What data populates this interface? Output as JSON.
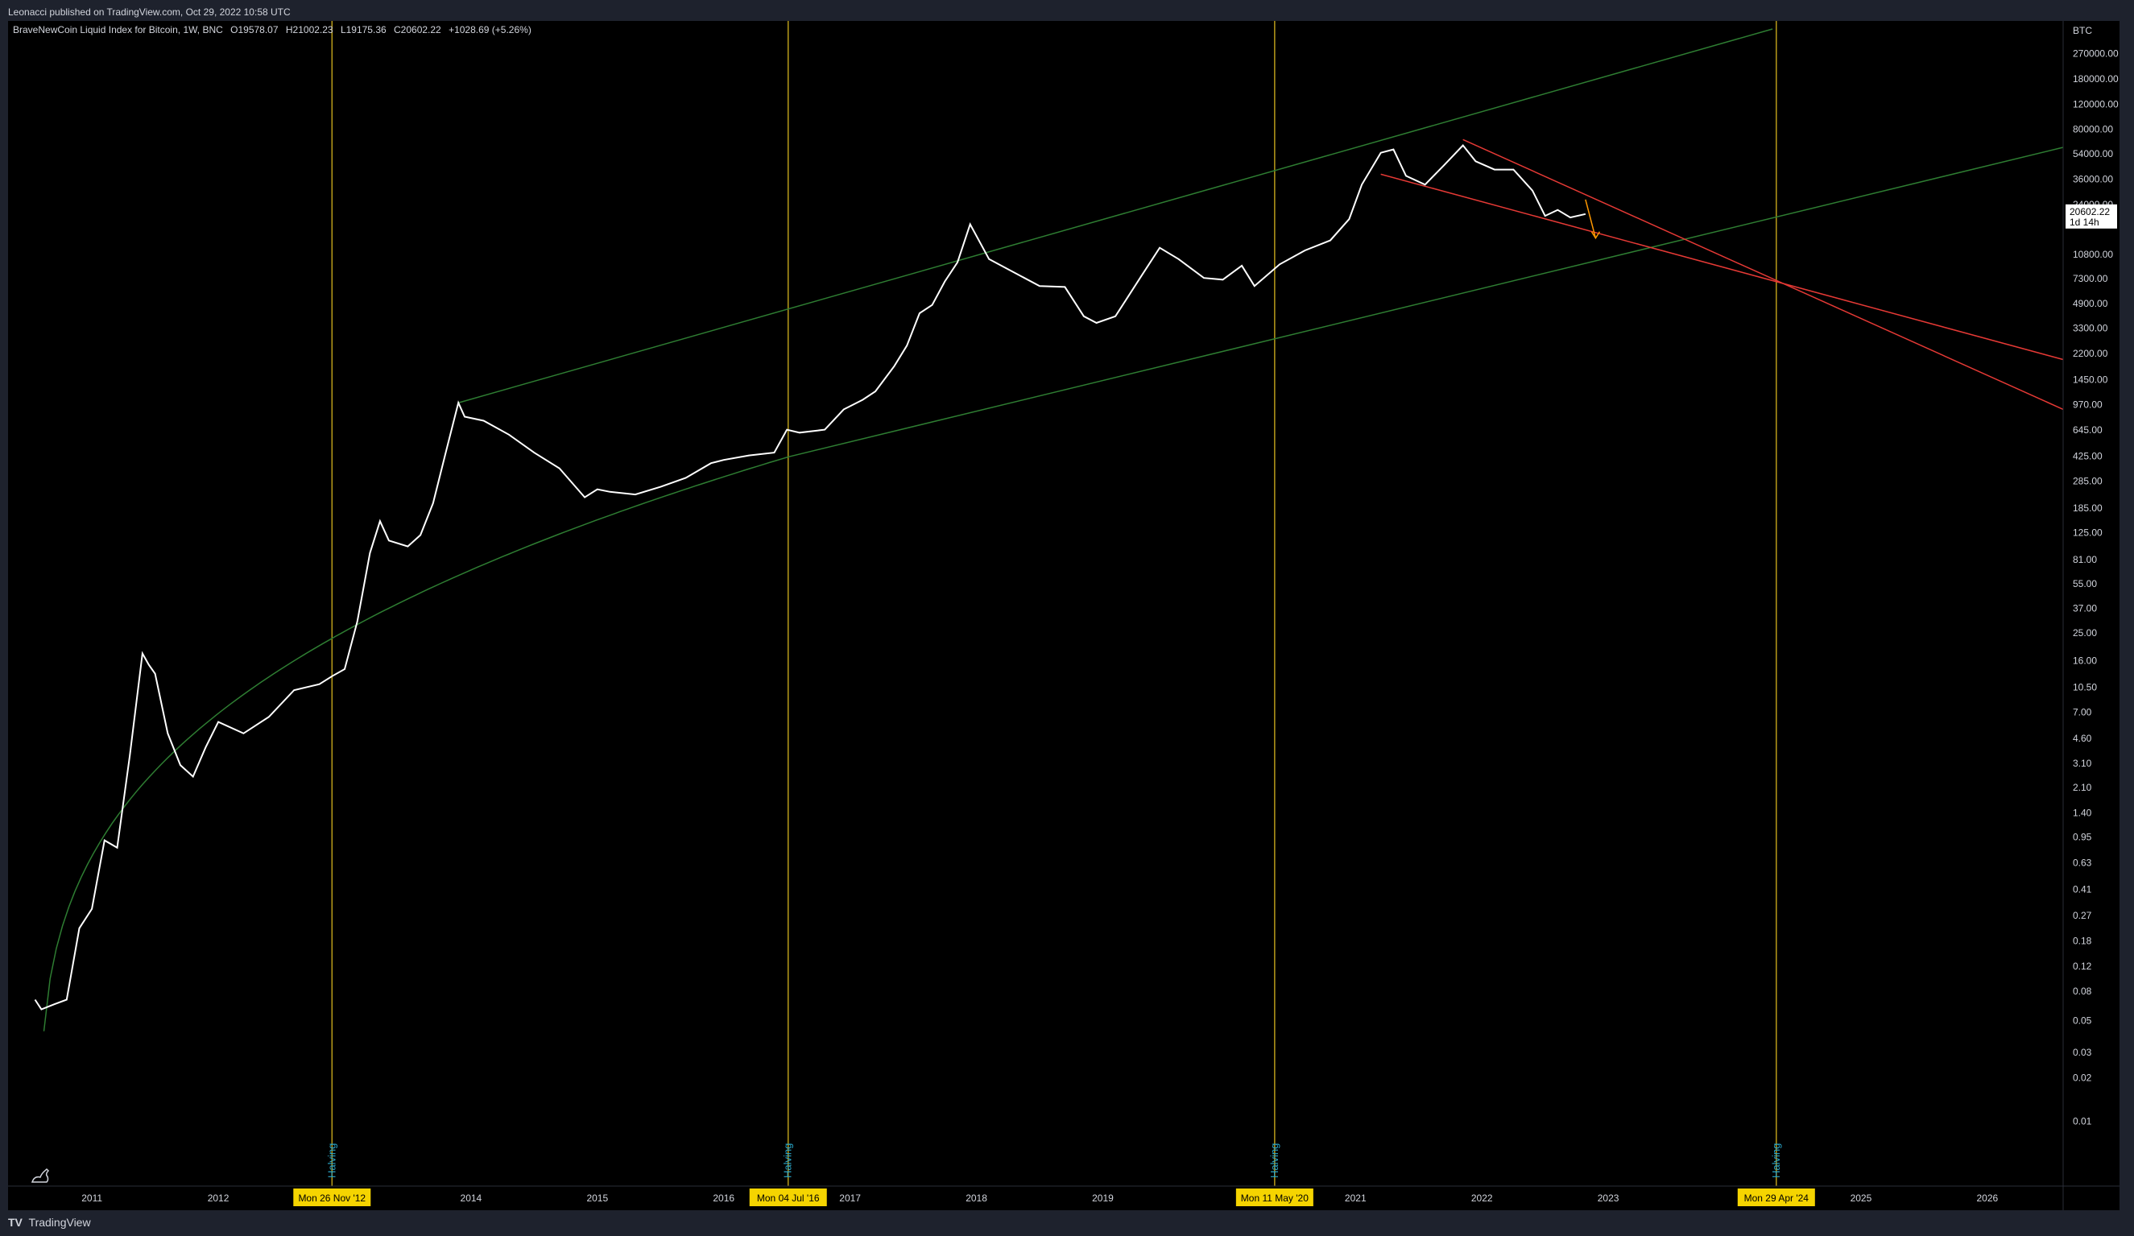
{
  "header": {
    "published": "Leonacci published on TradingView.com, Oct 29, 2022 10:58 UTC"
  },
  "legend": {
    "symbol": "BraveNewCoin Liquid Index for Bitcoin, 1W, BNC",
    "open": "O19578.07",
    "high": "H21002.23",
    "low": "L19175.36",
    "close": "C20602.22",
    "change": "+1028.69 (+5.26%)"
  },
  "footer": {
    "brand": "TradingView"
  },
  "chart_data": {
    "type": "line",
    "title": "BraveNewCoin Liquid Index for Bitcoin, 1W, BNC",
    "y_scale": "log",
    "y_currency": "BTC",
    "ylim": [
      0.005,
      400000
    ],
    "xlim": [
      2010.4,
      2026.6
    ],
    "x_tick_labels": [
      "2011",
      "2012",
      "2013",
      "2014",
      "2015",
      "2016",
      "2017",
      "2018",
      "2019",
      "2020",
      "2021",
      "2022",
      "2023",
      "2024",
      "2025",
      "2026"
    ],
    "y_tick_labels": [
      "270000.00",
      "180000.00",
      "120000.00",
      "80000.00",
      "54000.00",
      "36000.00",
      "24000.00",
      "10800.00",
      "7300.00",
      "4900.00",
      "3300.00",
      "2200.00",
      "1450.00",
      "970.00",
      "645.00",
      "425.00",
      "285.00",
      "185.00",
      "125.00",
      "81.00",
      "55.00",
      "37.00",
      "25.00",
      "16.00",
      "10.50",
      "7.00",
      "4.60",
      "3.10",
      "2.10",
      "1.40",
      "0.95",
      "0.63",
      "0.41",
      "0.27",
      "0.18",
      "0.12",
      "0.08",
      "0.05",
      "0.03",
      "0.02",
      "0.01"
    ],
    "last_price_label": "20602.22",
    "last_price_countdown": "1d 14h",
    "last_price": 20602.22,
    "series": [
      {
        "x": [
          2010.55,
          2010.6,
          2010.7,
          2010.8,
          2010.9,
          2011.0,
          2011.1,
          2011.2,
          2011.3,
          2011.4,
          2011.45,
          2011.5,
          2011.6,
          2011.7,
          2011.8,
          2011.9,
          2012.0,
          2012.2,
          2012.4,
          2012.6,
          2012.8,
          2012.9,
          2013.0,
          2013.1,
          2013.2,
          2013.28,
          2013.35,
          2013.5,
          2013.6,
          2013.7,
          2013.8,
          2013.9,
          2013.95,
          2014.1,
          2014.3,
          2014.5,
          2014.7,
          2014.9,
          2015.0,
          2015.1,
          2015.3,
          2015.5,
          2015.7,
          2015.9,
          2016.0,
          2016.2,
          2016.4,
          2016.5,
          2016.6,
          2016.8,
          2016.95,
          2017.1,
          2017.2,
          2017.35,
          2017.45,
          2017.55,
          2017.65,
          2017.75,
          2017.85,
          2017.95,
          2018.1,
          2018.25,
          2018.5,
          2018.7,
          2018.85,
          2018.95,
          2019.1,
          2019.3,
          2019.45,
          2019.6,
          2019.8,
          2019.95,
          2020.1,
          2020.2,
          2020.4,
          2020.6,
          2020.8,
          2020.95,
          2021.05,
          2021.2,
          2021.3,
          2021.4,
          2021.55,
          2021.7,
          2021.85,
          2021.95,
          2022.1,
          2022.25,
          2022.4,
          2022.5,
          2022.6,
          2022.7,
          2022.82
        ],
        "y": [
          0.07,
          0.06,
          0.065,
          0.07,
          0.22,
          0.3,
          0.9,
          0.8,
          3.5,
          18,
          15,
          13,
          5,
          3,
          2.5,
          4,
          6,
          5,
          6.5,
          10,
          11,
          12.5,
          14,
          30,
          90,
          150,
          110,
          100,
          120,
          200,
          450,
          1000,
          800,
          750,
          600,
          450,
          350,
          220,
          250,
          240,
          230,
          260,
          300,
          380,
          400,
          430,
          450,
          650,
          620,
          650,
          900,
          1050,
          1200,
          1800,
          2500,
          4200,
          4800,
          7000,
          9500,
          17500,
          10000,
          8500,
          6500,
          6400,
          4000,
          3600,
          4000,
          7500,
          12000,
          10000,
          7400,
          7200,
          9000,
          6500,
          9200,
          11500,
          13500,
          19000,
          33000,
          55000,
          58000,
          38000,
          33000,
          45000,
          62000,
          48000,
          42000,
          42000,
          30000,
          20000,
          22000,
          19500,
          20602
        ]
      }
    ],
    "annotations": [
      {
        "type": "vline",
        "x": 2012.9,
        "label": "Halving",
        "date_label": "Mon 26 Nov '12"
      },
      {
        "type": "vline",
        "x": 2016.51,
        "label": "Halving",
        "date_label": "Mon 04 Jul '16"
      },
      {
        "type": "vline",
        "x": 2020.36,
        "label": "Halving",
        "date_label": "Mon 11 May '20"
      },
      {
        "type": "vline",
        "x": 2024.33,
        "label": "Halving",
        "date_label": "Mon 29 Apr '24"
      }
    ],
    "trend_lines": [
      {
        "name": "upper-channel",
        "color": "#2e7d32",
        "points": [
          [
            2013.9,
            1000
          ],
          [
            2024.3,
            400000
          ]
        ]
      },
      {
        "name": "lower-channel",
        "color": "#2e7d32",
        "points": [
          [
            2016.51,
            420
          ],
          [
            2026.6,
            60000
          ]
        ]
      },
      {
        "name": "log-growth-curve",
        "color": "#2e7d32"
      },
      {
        "name": "upper-wedge",
        "color": "#e53935",
        "points": [
          [
            2021.85,
            68000
          ],
          [
            2026.6,
            900
          ]
        ]
      },
      {
        "name": "lower-wedge",
        "color": "#e53935",
        "points": [
          [
            2021.2,
            39000
          ],
          [
            2026.6,
            2000
          ]
        ]
      }
    ],
    "grid": false
  },
  "colors": {
    "background": "#000000",
    "halving_line": "#b89b1a",
    "halving_label_bg": "#f5d400",
    "channel": "#2e7d32",
    "wedge": "#e53935",
    "arrow": "#ff9800",
    "candles": "#ffffff"
  }
}
